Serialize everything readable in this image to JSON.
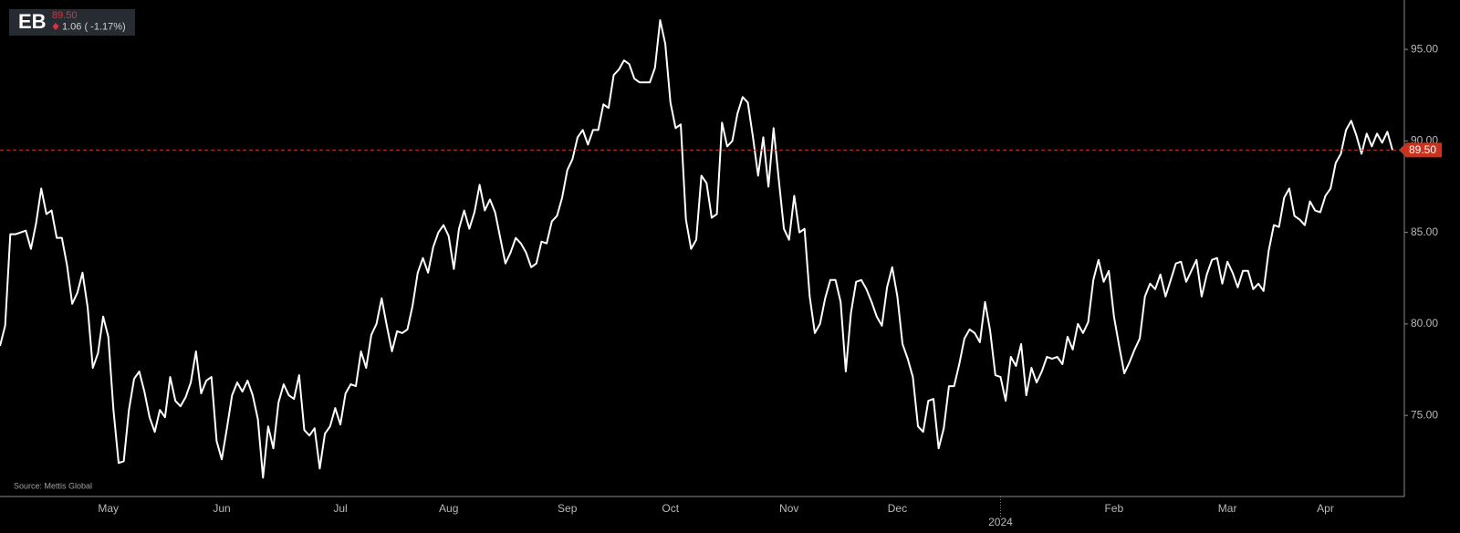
{
  "chart_data": {
    "type": "line",
    "header": {
      "symbol": "EB",
      "price": "89.50",
      "change": "1.06 ( -1.17%)"
    },
    "source": "Source: Mettis Global",
    "color": "#ffffff",
    "categories": [
      null,
      null,
      null,
      null,
      null,
      null,
      null,
      null,
      null,
      null,
      null,
      null,
      null,
      null,
      null,
      null,
      null,
      null,
      null,
      null,
      null,
      "May",
      null,
      null,
      null,
      null,
      null,
      null,
      null,
      null,
      null,
      null,
      null,
      null,
      null,
      null,
      null,
      null,
      null,
      null,
      null,
      null,
      null,
      "Jun",
      null,
      null,
      null,
      null,
      null,
      null,
      null,
      null,
      null,
      null,
      null,
      null,
      null,
      null,
      null,
      null,
      null,
      null,
      null,
      null,
      null,
      null,
      "Jul",
      null,
      null,
      null,
      null,
      null,
      null,
      null,
      null,
      null,
      null,
      null,
      null,
      null,
      null,
      null,
      null,
      null,
      null,
      null,
      null,
      "Aug",
      null,
      null,
      null,
      null,
      null,
      null,
      null,
      null,
      null,
      null,
      null,
      null,
      null,
      null,
      null,
      null,
      null,
      null,
      null,
      null,
      null,
      null,
      "Sep",
      null,
      null,
      null,
      null,
      null,
      null,
      null,
      null,
      null,
      null,
      null,
      null,
      null,
      null,
      null,
      null,
      null,
      null,
      null,
      "Oct",
      null,
      null,
      null,
      null,
      null,
      null,
      null,
      null,
      null,
      null,
      null,
      null,
      null,
      null,
      null,
      null,
      null,
      null,
      null,
      null,
      null,
      null,
      "Nov",
      null,
      null,
      null,
      null,
      null,
      null,
      null,
      null,
      null,
      null,
      null,
      null,
      null,
      null,
      null,
      null,
      null,
      null,
      null,
      null,
      "Dec",
      null,
      null,
      null,
      null,
      null,
      null,
      null,
      null,
      null,
      null,
      null,
      null,
      null,
      null,
      null,
      null,
      null,
      null,
      null,
      "2024",
      null,
      null,
      null,
      null,
      null,
      null,
      null,
      null,
      null,
      null,
      null,
      null,
      null,
      null,
      null,
      null,
      null,
      null,
      null,
      null,
      null,
      "Feb",
      null,
      null,
      null,
      null,
      null,
      null,
      null,
      null,
      null,
      null,
      null,
      null,
      null,
      null,
      null,
      null,
      null,
      null,
      null,
      null,
      null,
      "Mar",
      null,
      null,
      null,
      null,
      null,
      null,
      null,
      null,
      null,
      null,
      null,
      null,
      null,
      null,
      null,
      null,
      null,
      null,
      "Apr",
      null,
      null,
      null,
      null,
      null,
      null,
      null,
      null,
      null,
      null,
      null,
      null,
      null
    ],
    "values": [
      78.8,
      79.9,
      84.9,
      84.9,
      85.0,
      85.1,
      84.1,
      85.5,
      87.4,
      86.0,
      86.2,
      84.7,
      84.7,
      83.2,
      81.1,
      81.7,
      82.8,
      80.9,
      77.6,
      78.4,
      80.4,
      79.3,
      75.3,
      72.4,
      72.5,
      75.3,
      77.0,
      77.4,
      76.3,
      74.9,
      74.1,
      75.3,
      74.9,
      77.1,
      75.8,
      75.5,
      76.0,
      76.8,
      78.5,
      76.2,
      76.9,
      77.1,
      73.6,
      72.6,
      74.3,
      76.1,
      76.8,
      76.3,
      76.9,
      76.1,
      74.8,
      71.6,
      74.4,
      73.2,
      75.7,
      76.7,
      76.1,
      75.9,
      77.2,
      74.2,
      73.9,
      74.3,
      72.1,
      74.0,
      74.4,
      75.4,
      74.5,
      76.2,
      76.7,
      76.6,
      78.5,
      77.6,
      79.4,
      80.0,
      81.4,
      79.9,
      78.5,
      79.6,
      79.5,
      79.7,
      81.0,
      82.8,
      83.6,
      82.8,
      84.2,
      85.0,
      85.4,
      84.8,
      83.0,
      85.2,
      86.2,
      85.2,
      86.1,
      87.6,
      86.2,
      86.8,
      86.1,
      84.7,
      83.3,
      83.9,
      84.7,
      84.4,
      83.9,
      83.1,
      83.3,
      84.5,
      84.4,
      85.6,
      85.9,
      86.9,
      88.4,
      89.0,
      90.2,
      90.6,
      89.8,
      90.6,
      90.6,
      92.0,
      91.8,
      93.6,
      93.9,
      94.4,
      94.2,
      93.4,
      93.2,
      93.2,
      93.2,
      94.0,
      96.6,
      95.3,
      92.1,
      90.7,
      90.9,
      85.7,
      84.1,
      84.6,
      88.1,
      87.7,
      85.8,
      86.0,
      91.0,
      89.7,
      90.0,
      91.5,
      92.4,
      92.1,
      90.2,
      88.1,
      90.2,
      87.5,
      90.7,
      87.9,
      85.2,
      84.6,
      87.0,
      85.0,
      85.2,
      81.5,
      79.5,
      80.0,
      81.4,
      82.4,
      82.4,
      81.2,
      77.4,
      80.6,
      82.3,
      82.4,
      81.9,
      81.2,
      80.4,
      79.9,
      82.0,
      83.1,
      81.5,
      78.9,
      78.1,
      77.1,
      74.4,
      74.1,
      75.8,
      75.9,
      73.2,
      74.3,
      76.6,
      76.6,
      77.8,
      79.2,
      79.7,
      79.5,
      79.0,
      81.2,
      79.6,
      77.2,
      77.1,
      75.8,
      78.2,
      77.7,
      78.9,
      76.1,
      77.6,
      76.8,
      77.4,
      78.2,
      78.1,
      78.2,
      77.8,
      79.3,
      78.6,
      80.0,
      79.5,
      80.1,
      82.4,
      83.5,
      82.3,
      82.9,
      80.4,
      78.8,
      77.3,
      77.9,
      78.6,
      79.2,
      81.5,
      82.2,
      81.9,
      82.7,
      81.5,
      82.4,
      83.3,
      83.4,
      82.3,
      82.9,
      83.5,
      81.5,
      82.7,
      83.5,
      83.6,
      82.2,
      83.4,
      82.8,
      82.0,
      82.9,
      82.9,
      81.9,
      82.2,
      81.8,
      84.0,
      85.4,
      85.3,
      86.9,
      87.4,
      85.9,
      85.7,
      85.4,
      86.7,
      86.2,
      86.1,
      87.0,
      87.4,
      88.8,
      89.3,
      90.6,
      91.1,
      90.3,
      89.3,
      90.4,
      89.7,
      90.4,
      89.9,
      90.5,
      89.5
    ],
    "ylim": [
      70.57,
      97.7
    ],
    "yticks": [
      {
        "value": 75,
        "label": "75.00"
      },
      {
        "value": 80,
        "label": "80.00"
      },
      {
        "value": 85,
        "label": "85.00"
      },
      {
        "value": 90,
        "label": "90.00"
      },
      {
        "value": 95,
        "label": "95.00"
      }
    ],
    "price_line": {
      "value": 89.5,
      "label": "89.50",
      "color": "#c8321f"
    }
  }
}
